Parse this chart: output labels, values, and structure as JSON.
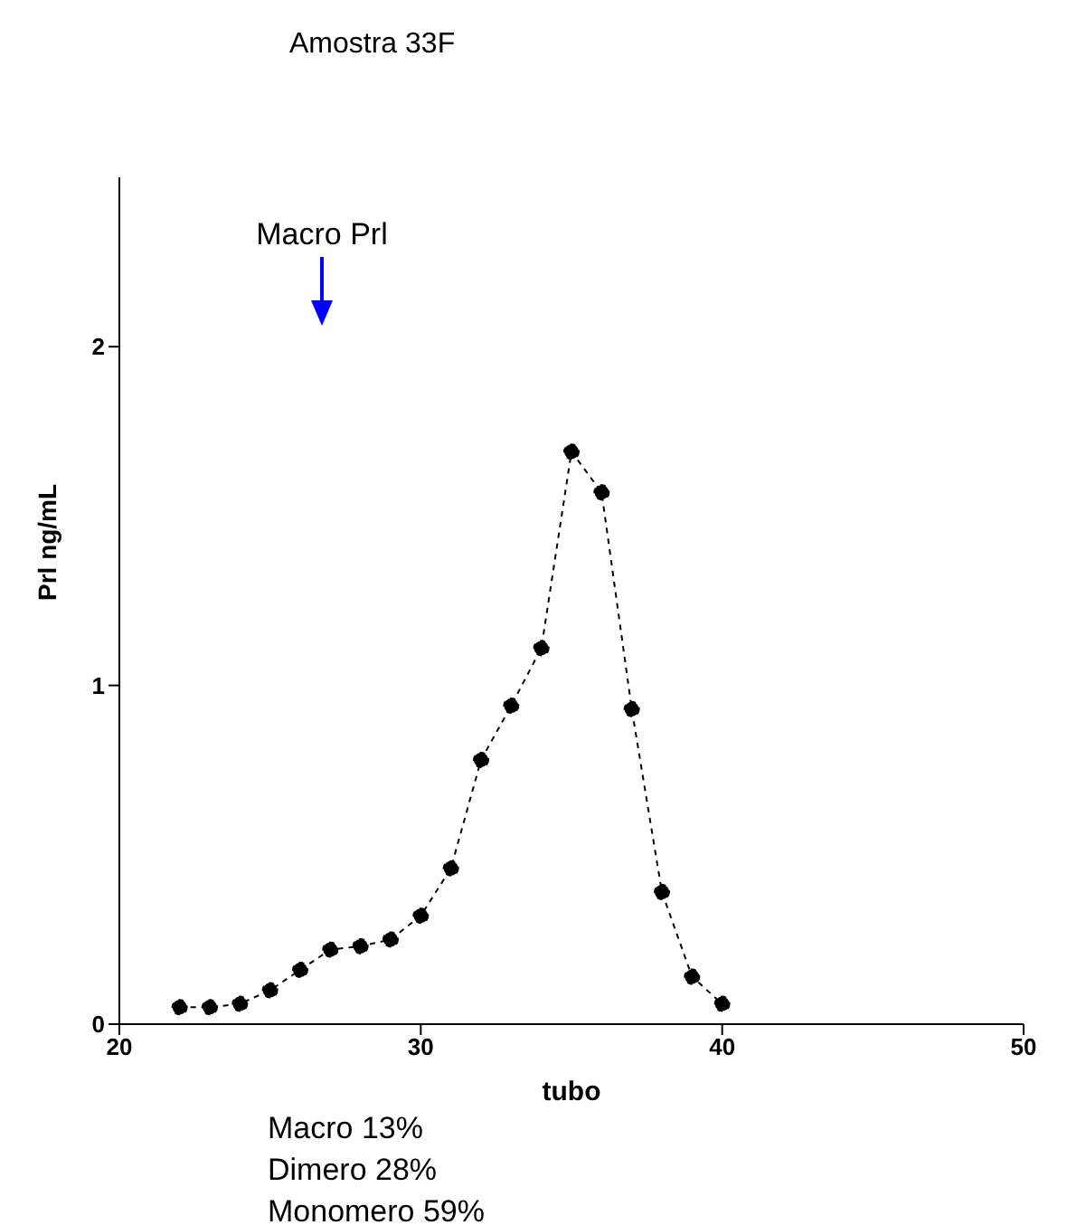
{
  "chart_data": {
    "type": "line",
    "title": "Amostra 33F",
    "xlabel": "tubo",
    "ylabel": "Prl ng/mL",
    "x": [
      22,
      23,
      24,
      25,
      26,
      27,
      28,
      29,
      30,
      31,
      32,
      33,
      34,
      35,
      36,
      37,
      38,
      39,
      40
    ],
    "series": [
      {
        "color": "#000000",
        "values": [
          0.05,
          0.05,
          0.06,
          0.1,
          0.16,
          0.22,
          0.23,
          0.25,
          0.32,
          0.46,
          0.78,
          0.94,
          1.11,
          1.69,
          1.57,
          0.93,
          0.39,
          0.14,
          0.06
        ]
      }
    ],
    "xlim": [
      20,
      50
    ],
    "xticks": [
      20,
      30,
      40,
      50
    ],
    "ylim": [
      0,
      2.5
    ],
    "yticks": [
      0,
      1,
      2
    ],
    "marker": "circle",
    "line_style": "dashed",
    "grid": false,
    "legend": false,
    "annotations": [
      "Macro Prl",
      "Macro 13%",
      "Dimero 28%",
      "Monomero 59%"
    ]
  }
}
